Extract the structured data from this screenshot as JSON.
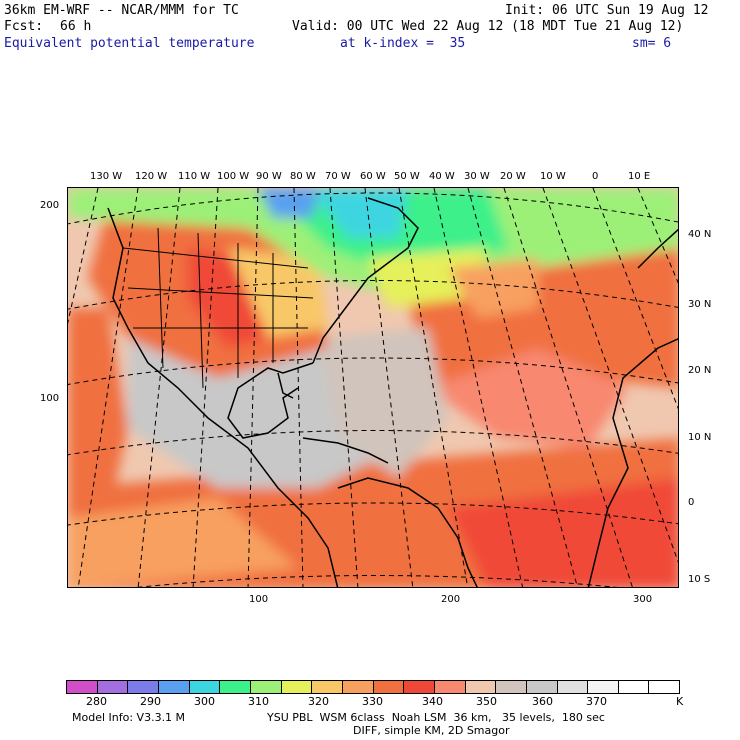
{
  "header": {
    "model": "36km EM-WRF -- NCAR/MMM for TC",
    "init": "Init: 06 UTC Sun 19 Aug 12",
    "fcst_label": "Fcst:",
    "fcst_value": "66 h",
    "valid": "Valid: 00 UTC Wed 22 Aug 12 (18 MDT Tue 21 Aug 12)",
    "field": "Equivalent potential temperature",
    "level": "at k-index =  35",
    "smooth": "sm= 6"
  },
  "map": {
    "top_lon_labels": [
      "130 W",
      "120 W",
      "110 W",
      "100 W",
      "90 W",
      "80 W",
      "70 W",
      "60 W",
      "50 W",
      "40 W",
      "30 W",
      "20 W",
      "10 W",
      "0",
      "10 E"
    ],
    "right_lat_labels": [
      "40 N",
      "30 N",
      "20 N",
      "10 N",
      "0",
      "10 S"
    ],
    "left_grid_labels": [
      "200",
      "100"
    ],
    "bottom_grid_labels": [
      "100",
      "200",
      "300"
    ]
  },
  "colorbar": {
    "colors": [
      "#d04fc8",
      "#a46ee0",
      "#7c7ce8",
      "#5aa0f0",
      "#3cd6e0",
      "#3cf08a",
      "#9cf078",
      "#e6f05a",
      "#f8c868",
      "#f8a060",
      "#f07040",
      "#f04838",
      "#f88870",
      "#f0c8b0",
      "#d0c4bc",
      "#c8c8c8",
      "#e0e0e0",
      "#f4f4f4",
      "#ffffff",
      "#ffffff"
    ],
    "labels": [
      "280",
      "290",
      "300",
      "310",
      "320",
      "330",
      "340",
      "350",
      "360",
      "370"
    ],
    "unit": "K"
  },
  "footer": {
    "left": "Model Info: V3.3.1 M",
    "right1": "YSU PBL  WSM 6class  Noah LSM  36 km,   35 levels,  180 sec",
    "right2": "DIFF, simple KM, 2D Smagor"
  }
}
